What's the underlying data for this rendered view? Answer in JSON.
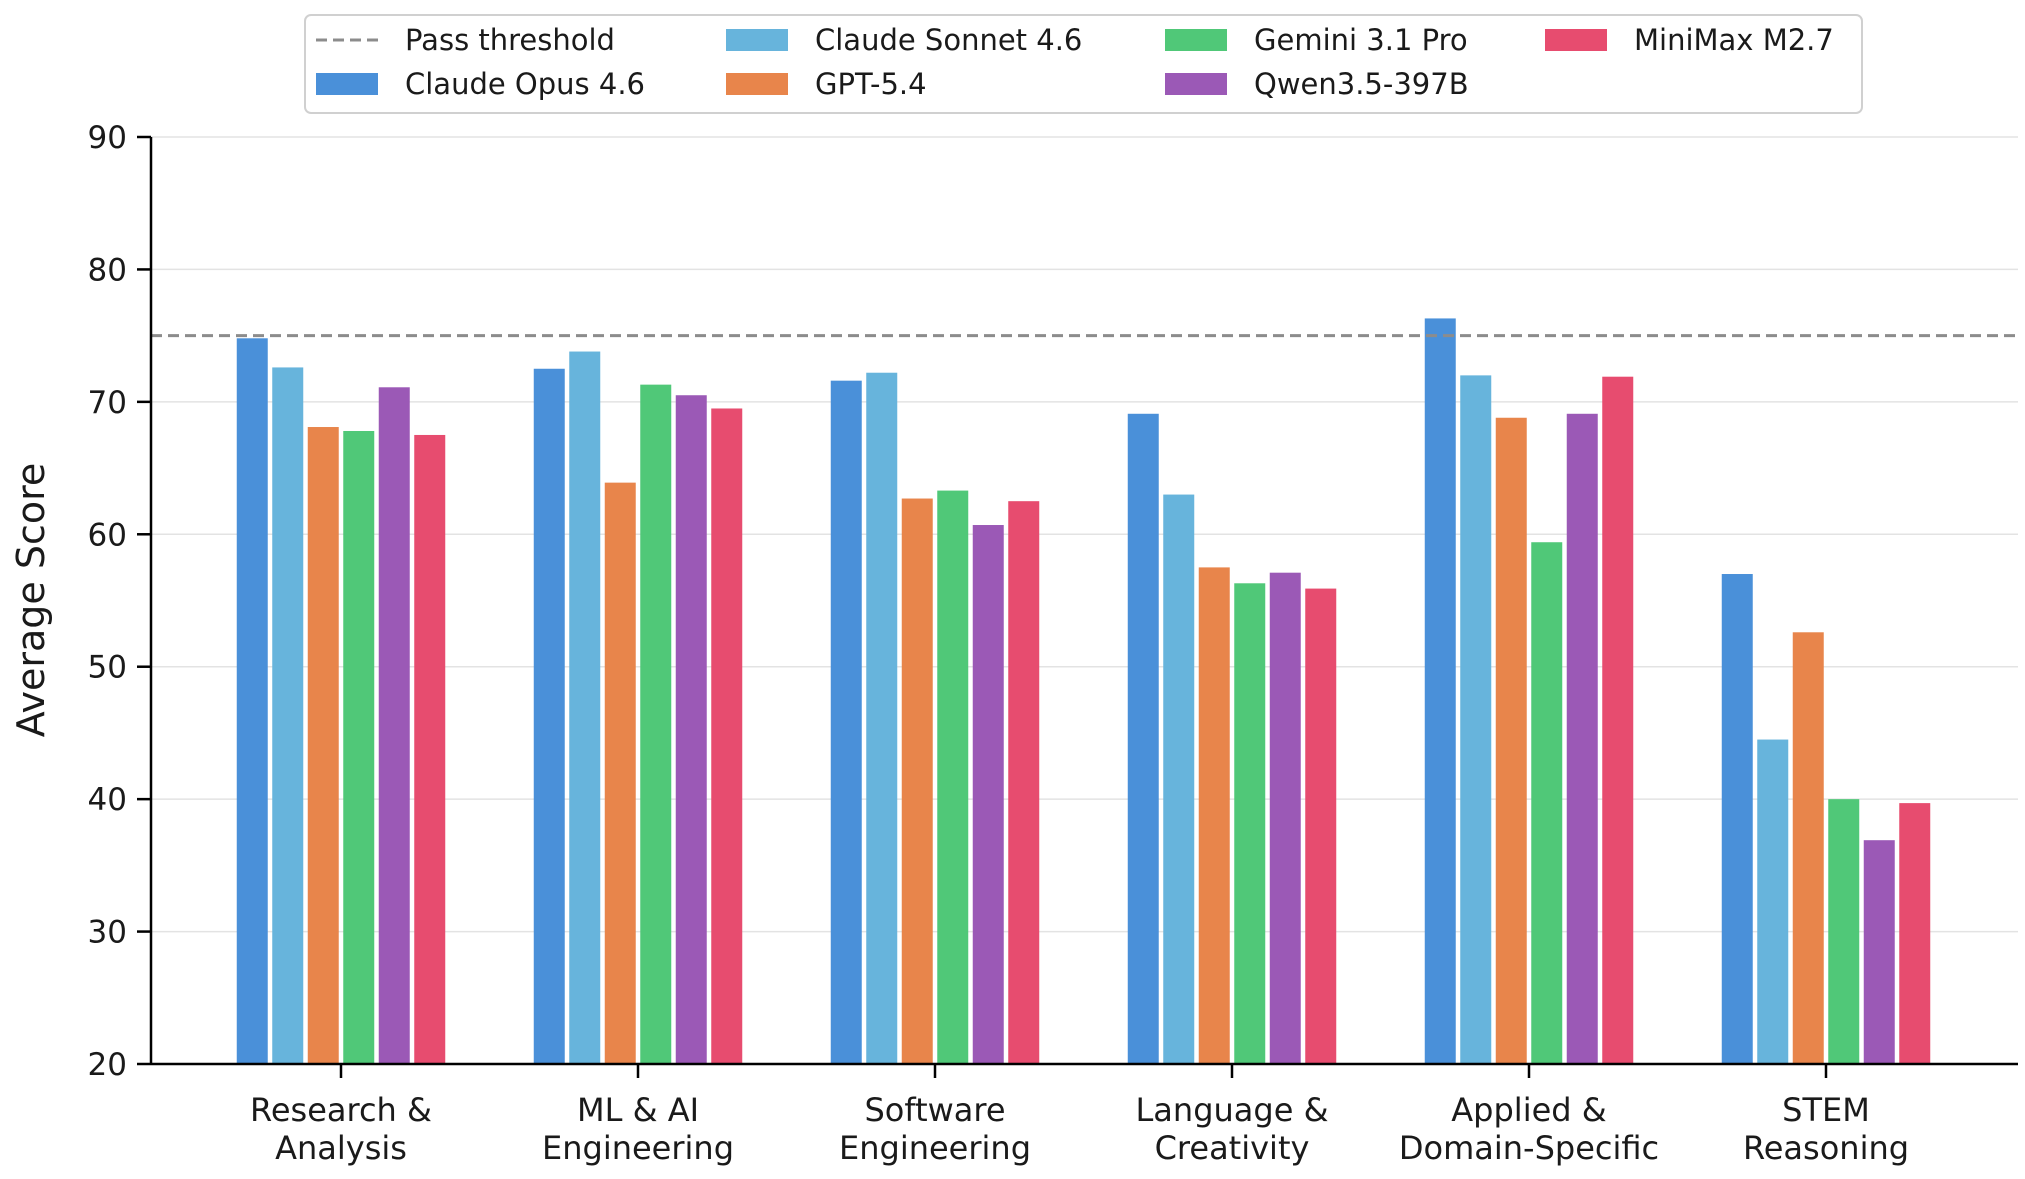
{
  "chart_data": {
    "type": "bar",
    "ylabel": "Average Score",
    "xlabel": "",
    "ylim": [
      20,
      90
    ],
    "yticks": [
      20,
      30,
      40,
      50,
      60,
      70,
      80,
      90
    ],
    "grid": "horizontal",
    "legend_position": "top-center",
    "categories": [
      [
        "Research &",
        "Analysis"
      ],
      [
        "ML & AI",
        "Engineering"
      ],
      [
        "Software",
        "Engineering"
      ],
      [
        "Language &",
        "Creativity"
      ],
      [
        "Applied &",
        "Domain-Specific"
      ],
      [
        "STEM",
        "Reasoning"
      ]
    ],
    "threshold": {
      "name": "Pass threshold",
      "value": 75,
      "color": "#8c8c8c"
    },
    "series": [
      {
        "name": "Claude Opus 4.6",
        "color": "#4a90d9",
        "values": [
          74.8,
          72.5,
          71.6,
          69.1,
          76.3,
          57.0
        ]
      },
      {
        "name": "Claude Sonnet 4.6",
        "color": "#67b4dc",
        "values": [
          72.6,
          73.8,
          72.2,
          63.0,
          72.0,
          44.5
        ]
      },
      {
        "name": "GPT-5.4",
        "color": "#e8854b",
        "values": [
          68.1,
          63.9,
          62.7,
          57.5,
          68.8,
          52.6
        ]
      },
      {
        "name": "Gemini 3.1 Pro",
        "color": "#50c878",
        "values": [
          67.8,
          71.3,
          63.3,
          56.3,
          59.4,
          40.0
        ]
      },
      {
        "name": "Qwen3.5-397B",
        "color": "#9b59b6",
        "values": [
          71.1,
          70.5,
          60.7,
          57.1,
          69.1,
          36.9
        ]
      },
      {
        "name": "MiniMax M2.7",
        "color": "#e74c6f",
        "values": [
          67.5,
          69.5,
          62.5,
          55.9,
          71.9,
          39.7
        ]
      }
    ]
  }
}
